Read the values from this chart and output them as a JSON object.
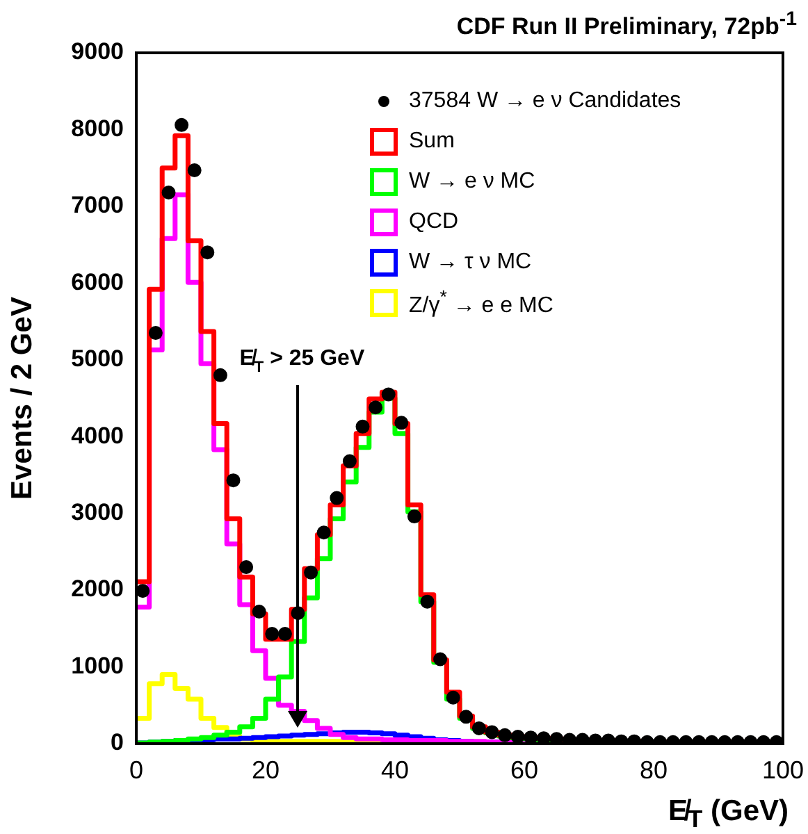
{
  "chart_data": {
    "type": "histogram",
    "title": "CDF Run II Preliminary, 72pb$^{-1}$",
    "xlabel": "E̸$_{T}$ (GeV)",
    "ylabel": "Events / 2 GeV",
    "bins": [
      0,
      2,
      4,
      6,
      8,
      10,
      12,
      14,
      16,
      18,
      20,
      22,
      24,
      26,
      28,
      30,
      32,
      34,
      36,
      38,
      40,
      42,
      44,
      46,
      48,
      50,
      52,
      54,
      56,
      58,
      60,
      62,
      64,
      66,
      68,
      70,
      72,
      74,
      76,
      78,
      80,
      82,
      84,
      86,
      88,
      90,
      92,
      94,
      96,
      98,
      100
    ],
    "xlim": [
      0,
      100
    ],
    "xticks": [
      0,
      20,
      40,
      60,
      80,
      100
    ],
    "ylim": [
      0,
      9000
    ],
    "yticks": [
      0,
      1000,
      2000,
      3000,
      4000,
      5000,
      6000,
      7000,
      8000,
      9000
    ],
    "grid": false,
    "legend": "top right",
    "marker": "circle",
    "series": [
      {
        "name": "37584 W  → e ν Candidates",
        "type": "scatter",
        "color": "#000000",
        "x": [
          1,
          3,
          5,
          7,
          9,
          11,
          13,
          15,
          17,
          19,
          21,
          23,
          25,
          27,
          29,
          31,
          33,
          35,
          37,
          39,
          41,
          43,
          45,
          47,
          49,
          51,
          53,
          55,
          57,
          59,
          61,
          63,
          65,
          67,
          69,
          71,
          73,
          75,
          77,
          79,
          81,
          83,
          85,
          87,
          89,
          91,
          93,
          95,
          97,
          99
        ],
        "values": [
          1990,
          5350,
          7180,
          8060,
          7470,
          6400,
          4800,
          3430,
          2300,
          1720,
          1430,
          1430,
          1700,
          2230,
          2750,
          3200,
          3680,
          4130,
          4380,
          4550,
          4180,
          2960,
          1850,
          1100,
          600,
          350,
          200,
          150,
          110,
          90,
          80,
          70,
          60,
          50,
          50,
          40,
          40,
          30,
          30,
          20,
          20,
          20,
          20,
          20,
          20,
          20,
          20,
          20,
          20,
          20
        ]
      },
      {
        "name": "Sum",
        "color": "#ff0000",
        "values": [
          2110,
          5920,
          7500,
          7920,
          6550,
          5370,
          4170,
          2930,
          2170,
          1690,
          1360,
          1360,
          1750,
          2280,
          2720,
          3110,
          3620,
          4040,
          4490,
          4580,
          4170,
          3110,
          1940,
          1090,
          670,
          360,
          220,
          150,
          110,
          90,
          80,
          70,
          60,
          50,
          50,
          40,
          40,
          30,
          30,
          20,
          20,
          20,
          20,
          20,
          20,
          20,
          20,
          20,
          20,
          20
        ]
      },
      {
        "name": "W → e ν MC",
        "color": "#00ff00",
        "values": [
          10,
          20,
          30,
          40,
          60,
          80,
          110,
          150,
          220,
          330,
          580,
          870,
          1330,
          1900,
          2410,
          2930,
          3410,
          3860,
          4320,
          4500,
          4040,
          3020,
          1850,
          1060,
          580,
          330,
          200,
          140,
          100,
          80,
          60,
          50,
          40,
          30,
          30,
          20,
          20,
          20,
          10,
          10,
          10,
          10,
          10,
          10,
          10,
          10,
          10,
          10,
          10,
          10
        ]
      },
      {
        "name": "QCD",
        "color": "#ff00ff",
        "values": [
          1780,
          5130,
          6580,
          7150,
          6010,
          4950,
          3830,
          2600,
          1810,
          1210,
          850,
          500,
          420,
          300,
          200,
          120,
          80,
          60,
          60,
          50,
          50,
          40,
          40,
          40,
          30,
          30,
          30,
          20,
          20,
          20,
          20,
          20,
          10,
          10,
          10,
          10,
          10,
          10,
          10,
          10,
          10,
          10,
          10,
          10,
          10,
          10,
          10,
          10,
          10,
          10
        ]
      },
      {
        "name": "W → τ ν MC",
        "color": "#0000ff",
        "values": [
          10,
          20,
          30,
          40,
          50,
          50,
          60,
          60,
          70,
          80,
          90,
          100,
          110,
          120,
          130,
          140,
          150,
          150,
          140,
          130,
          110,
          90,
          70,
          50,
          40,
          30,
          20,
          20,
          10,
          10,
          10,
          10,
          10,
          10,
          10,
          10,
          10,
          10,
          10,
          10,
          10,
          10,
          10,
          10,
          10,
          10,
          10,
          10,
          10,
          10
        ]
      },
      {
        "name": "Z/γ$^{*}$ → e e MC",
        "color": "#ffff00",
        "values": [
          330,
          780,
          900,
          720,
          580,
          330,
          210,
          100,
          60,
          40,
          30,
          30,
          30,
          30,
          30,
          30,
          30,
          30,
          30,
          30,
          30,
          30,
          20,
          20,
          20,
          20,
          20,
          20,
          20,
          20,
          20,
          20,
          20,
          20,
          20,
          20,
          20,
          20,
          20,
          20,
          20,
          20,
          20,
          20,
          20,
          20,
          20,
          20,
          20,
          20
        ]
      }
    ],
    "ref_lines": [
      {
        "axis": "x",
        "value": 25,
        "label": "E̸$_{T}$ > 25 GeV",
        "color": "#000000"
      }
    ]
  }
}
